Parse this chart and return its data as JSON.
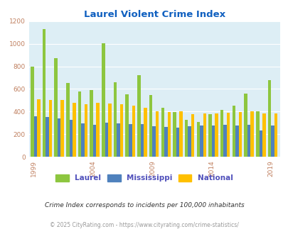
{
  "title": "Laurel Violent Crime Index",
  "years": [
    1999,
    2000,
    2001,
    2002,
    2003,
    2004,
    2005,
    2006,
    2007,
    2008,
    2009,
    2010,
    2011,
    2012,
    2013,
    2014,
    2015,
    2016,
    2017,
    2018,
    2019,
    2020
  ],
  "laurel": [
    800,
    1130,
    875,
    650,
    580,
    590,
    1005,
    660,
    550,
    720,
    545,
    435,
    395,
    325,
    305,
    375,
    415,
    450,
    560,
    400,
    680,
    null
  ],
  "mississippi": [
    360,
    350,
    340,
    325,
    295,
    280,
    300,
    295,
    290,
    290,
    270,
    265,
    260,
    270,
    275,
    275,
    280,
    275,
    285,
    235,
    275,
    null
  ],
  "national": [
    510,
    505,
    500,
    480,
    465,
    475,
    470,
    465,
    450,
    435,
    405,
    395,
    400,
    375,
    380,
    385,
    390,
    395,
    400,
    385,
    380,
    null
  ],
  "laurel_color": "#8dc63f",
  "miss_color": "#4f81bd",
  "natl_color": "#ffc000",
  "bg_color": "#ddeef5",
  "ylim": [
    0,
    1200
  ],
  "yticks": [
    0,
    200,
    400,
    600,
    800,
    1000,
    1200
  ],
  "xlabel_ticks": [
    1999,
    2004,
    2009,
    2014,
    2019
  ],
  "footnote1": "Crime Index corresponds to incidents per 100,000 inhabitants",
  "footnote2": "© 2025 CityRating.com - https://www.cityrating.com/crime-statistics/",
  "legend_labels": [
    "Laurel",
    "Mississippi",
    "National"
  ],
  "title_color": "#1060c0",
  "legend_text_color": "#5050bb",
  "footnote1_color": "#333333",
  "footnote2_color": "#999999",
  "ytick_color": "#c08060",
  "xtick_color": "#c08060"
}
